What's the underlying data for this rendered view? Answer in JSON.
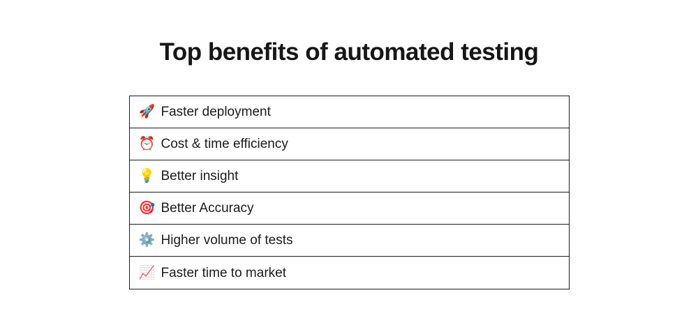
{
  "page": {
    "title": "Top benefits of automated testing"
  },
  "benefits": {
    "items": [
      {
        "icon": "🚀",
        "icon_name": "rocket-icon",
        "label": "Faster deployment"
      },
      {
        "icon": "⏰",
        "icon_name": "alarm-clock-icon",
        "label": "Cost & time efficiency"
      },
      {
        "icon": "💡",
        "icon_name": "light-bulb-icon",
        "label": "Better insight"
      },
      {
        "icon": "🎯",
        "icon_name": "target-icon",
        "label": "Better Accuracy"
      },
      {
        "icon": "⚙️",
        "icon_name": "gear-icon",
        "label": "Higher volume of tests"
      },
      {
        "icon": "📈",
        "icon_name": "chart-increasing-icon",
        "label": "Faster time to market"
      }
    ]
  },
  "colors": {
    "background": "#ffffff",
    "text": "#1c1c1c",
    "border": "#1c1c1c"
  }
}
